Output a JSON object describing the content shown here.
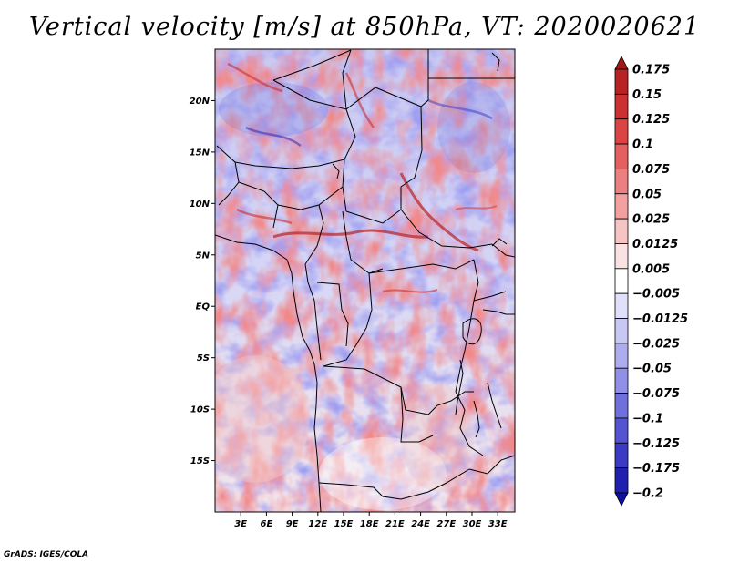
{
  "title": "Vertical velocity [m/s] at 850hPa, VT: 2020020621",
  "credit": "GrADS: IGES/COLA",
  "map": {
    "lat_labels": [
      "20N",
      "15N",
      "10N",
      "5N",
      "EQ",
      "5S",
      "10S",
      "15S"
    ],
    "lat_values": [
      20,
      15,
      10,
      5,
      0,
      -5,
      -10,
      -15
    ],
    "lon_labels": [
      "3E",
      "6E",
      "9E",
      "12E",
      "15E",
      "18E",
      "21E",
      "24E",
      "27E",
      "30E",
      "33E"
    ],
    "lon_values": [
      3,
      6,
      9,
      12,
      15,
      18,
      21,
      24,
      27,
      30,
      33
    ],
    "lat_range": [
      -20,
      25
    ],
    "lon_range": [
      0,
      35
    ]
  },
  "colorbar": {
    "labels": [
      "0.175",
      "0.15",
      "0.125",
      "0.1",
      "0.075",
      "0.05",
      "0.025",
      "0.0125",
      "0.005",
      "−0.005",
      "−0.0125",
      "−0.025",
      "−0.05",
      "−0.075",
      "−0.1",
      "−0.125",
      "−0.175",
      "−0.2"
    ],
    "colors": [
      "#a01818",
      "#b82222",
      "#cc3030",
      "#dc4444",
      "#e46060",
      "#ec8080",
      "#f2a0a0",
      "#f7c4c4",
      "#fbe2e2",
      "#ffffff",
      "#e0e0fa",
      "#c8c8f4",
      "#acacee",
      "#9090e6",
      "#7070dc",
      "#5454d2",
      "#3a3ac4",
      "#2020b0",
      "#1010a0"
    ]
  }
}
